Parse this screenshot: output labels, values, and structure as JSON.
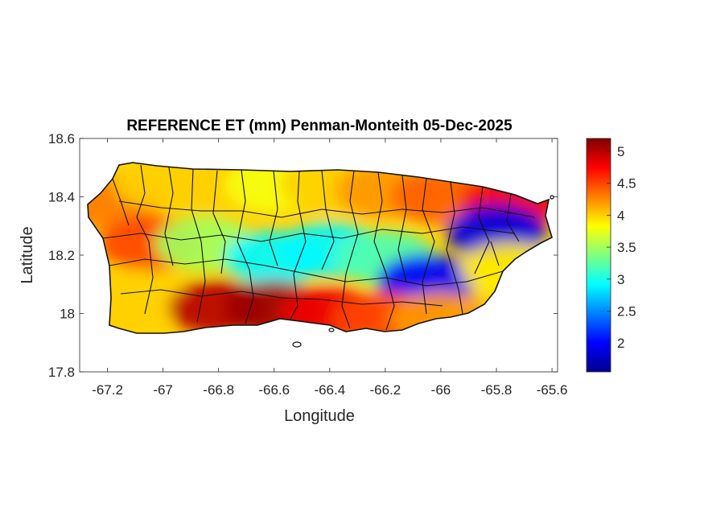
{
  "chart_data": {
    "type": "heatmap",
    "title": "REFERENCE ET (mm) Penman-Monteith 05-Dec-2025",
    "xlabel": "Longitude",
    "ylabel": "Latitude",
    "xlim": [
      -67.3,
      -65.58
    ],
    "ylim": [
      17.8,
      18.6
    ],
    "x_ticks": [
      -67.2,
      -67.0,
      -66.8,
      -66.6,
      -66.4,
      -66.2,
      -66.0,
      -65.8,
      -65.6
    ],
    "x_tick_labels": [
      "-67.2",
      "-67",
      "-66.8",
      "-66.6",
      "-66.4",
      "-66.2",
      "-66",
      "-65.8",
      "-65.6"
    ],
    "y_ticks": [
      17.8,
      18.0,
      18.2,
      18.4,
      18.6
    ],
    "y_tick_labels": [
      "17.8",
      "18",
      "18.2",
      "18.4",
      "18.6"
    ],
    "colorbar": {
      "colormap": "jet",
      "range": [
        1.55,
        5.2
      ],
      "ticks": [
        2,
        2.5,
        3,
        3.5,
        4,
        4.5,
        5
      ],
      "tick_labels": [
        "2",
        "2.5",
        "3",
        "3.5",
        "4",
        "4.5",
        "5"
      ]
    },
    "grid": false,
    "regions": [
      {
        "lon": -67.18,
        "lat": 18.38,
        "value": 4.3
      },
      {
        "lon": -67.0,
        "lat": 18.45,
        "value": 4.0
      },
      {
        "lon": -66.8,
        "lat": 18.44,
        "value": 4.0
      },
      {
        "lon": -66.6,
        "lat": 18.44,
        "value": 3.8
      },
      {
        "lon": -66.4,
        "lat": 18.44,
        "value": 4.0
      },
      {
        "lon": -66.2,
        "lat": 18.42,
        "value": 4.2
      },
      {
        "lon": -66.0,
        "lat": 18.4,
        "value": 4.4
      },
      {
        "lon": -65.75,
        "lat": 18.38,
        "value": 4.8
      },
      {
        "lon": -67.05,
        "lat": 18.24,
        "value": 4.5
      },
      {
        "lon": -66.85,
        "lat": 18.24,
        "value": 3.5
      },
      {
        "lon": -66.6,
        "lat": 18.19,
        "value": 2.9
      },
      {
        "lon": -66.4,
        "lat": 18.22,
        "value": 2.9
      },
      {
        "lon": -66.2,
        "lat": 18.19,
        "value": 3.2
      },
      {
        "lon": -66.05,
        "lat": 18.11,
        "value": 2.0
      },
      {
        "lon": -65.8,
        "lat": 18.28,
        "value": 1.9
      },
      {
        "lon": -65.75,
        "lat": 18.15,
        "value": 3.9
      },
      {
        "lon": -67.1,
        "lat": 18.06,
        "value": 4.0
      },
      {
        "lon": -66.8,
        "lat": 18.02,
        "value": 5.0
      },
      {
        "lon": -66.6,
        "lat": 18.02,
        "value": 5.1
      },
      {
        "lon": -66.4,
        "lat": 18.0,
        "value": 4.8
      },
      {
        "lon": -66.2,
        "lat": 17.98,
        "value": 4.5
      },
      {
        "lon": -66.0,
        "lat": 17.98,
        "value": 4.2
      }
    ]
  }
}
